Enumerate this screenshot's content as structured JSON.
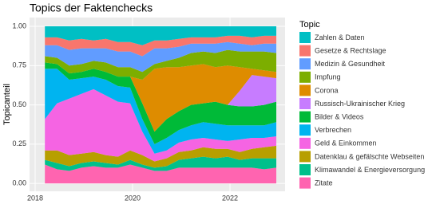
{
  "chart_data": {
    "type": "stacked-area",
    "title": "Topics der Faktenchecks",
    "y_label": "Topicanteil",
    "legend_title": "Topic",
    "x": [
      2018.2,
      2018.45,
      2018.7,
      2018.95,
      2019.2,
      2019.45,
      2019.7,
      2019.95,
      2020.2,
      2020.45,
      2020.7,
      2020.95,
      2021.2,
      2021.45,
      2021.7,
      2021.95,
      2022.2,
      2022.45,
      2022.7,
      2022.95
    ],
    "xlim": [
      2017.885,
      2023.13
    ],
    "xticks": [
      2018,
      2020,
      2022
    ],
    "ylim": [
      -0.05,
      1.056
    ],
    "yticks": [
      {
        "value": 0,
        "label": "0.00"
      },
      {
        "value": 0.25,
        "label": "0.25"
      },
      {
        "value": 0.5,
        "label": "0.50"
      },
      {
        "value": 0.75,
        "label": "0.75"
      },
      {
        "value": 1,
        "label": "1.00"
      }
    ],
    "grid": true,
    "series": [
      {
        "name": "Zahlen & Daten",
        "color": "#00BFC4",
        "values": [
          0.07,
          0.07,
          0.09,
          0.08,
          0.09,
          0.08,
          0.1,
          0.1,
          0.12,
          0.09,
          0.09,
          0.08,
          0.07,
          0.07,
          0.07,
          0.06,
          0.06,
          0.07,
          0.06,
          0.06
        ]
      },
      {
        "name": "Gesetze & Rechtslage",
        "color": "#F8766D",
        "values": [
          0.05,
          0.05,
          0.06,
          0.06,
          0.05,
          0.06,
          0.06,
          0.06,
          0.07,
          0.05,
          0.05,
          0.05,
          0.04,
          0.04,
          0.04,
          0.04,
          0.05,
          0.05,
          0.05,
          0.05
        ]
      },
      {
        "name": "Medizin & Gesundheit",
        "color": "#619CFF",
        "values": [
          0.07,
          0.08,
          0.1,
          0.1,
          0.08,
          0.09,
          0.1,
          0.1,
          0.1,
          0.1,
          0.08,
          0.07,
          0.06,
          0.05,
          0.06,
          0.05,
          0.05,
          0.04,
          0.05,
          0.06
        ]
      },
      {
        "name": "Impfung",
        "color": "#7CAE00",
        "values": [
          0.04,
          0.04,
          0.05,
          0.05,
          0.05,
          0.06,
          0.06,
          0.06,
          0.05,
          0.03,
          0.04,
          0.06,
          0.08,
          0.08,
          0.09,
          0.1,
          0.1,
          0.11,
          0.12,
          0.12
        ]
      },
      {
        "name": "Corona",
        "color": "#DE8C00",
        "values": [
          0,
          0,
          0,
          0,
          0,
          0,
          0,
          0,
          0.15,
          0.4,
          0.33,
          0.28,
          0.25,
          0.25,
          0.22,
          0.25,
          0.15,
          0.04,
          0.04,
          0.04
        ]
      },
      {
        "name": "Russisch-Ukrainischer Krieg",
        "color": "#C77CFF",
        "values": [
          0,
          0,
          0,
          0,
          0,
          0,
          0,
          0,
          0,
          0,
          0,
          0,
          0,
          0,
          0,
          0,
          0.1,
          0.2,
          0.18,
          0.15
        ]
      },
      {
        "name": "Bilder & Videos",
        "color": "#00BA38",
        "values": [
          0.04,
          0.03,
          0.04,
          0.04,
          0.05,
          0.05,
          0.06,
          0.07,
          0.1,
          0.08,
          0.12,
          0.12,
          0.13,
          0.12,
          0.14,
          0.13,
          0.12,
          0.12,
          0.13,
          0.13
        ]
      },
      {
        "name": "Verbrechen",
        "color": "#00B4F0",
        "values": [
          0.32,
          0.22,
          0.12,
          0.1,
          0.08,
          0.1,
          0.1,
          0.1,
          0.08,
          0.06,
          0.08,
          0.08,
          0.09,
          0.1,
          0.1,
          0.1,
          0.09,
          0.08,
          0.08,
          0.09
        ]
      },
      {
        "name": "Geld & Einkommen",
        "color": "#F564E3",
        "values": [
          0.2,
          0.3,
          0.36,
          0.38,
          0.4,
          0.38,
          0.35,
          0.3,
          0.15,
          0.05,
          0.05,
          0.06,
          0.07,
          0.06,
          0.06,
          0.05,
          0.08,
          0.07,
          0.06,
          0.06
        ]
      },
      {
        "name": "Datenklau & gefälschte Webseiten",
        "color": "#B79F00",
        "values": [
          0.06,
          0.08,
          0.07,
          0.06,
          0.06,
          0.05,
          0.05,
          0.06,
          0.06,
          0.04,
          0.05,
          0.05,
          0.05,
          0.06,
          0.06,
          0.05,
          0.05,
          0.06,
          0.07,
          0.08
        ]
      },
      {
        "name": "Klimawandel & Energieversorgung",
        "color": "#00C08B",
        "values": [
          0.03,
          0.04,
          0.03,
          0.03,
          0.03,
          0.03,
          0.02,
          0.03,
          0.02,
          0.02,
          0.03,
          0.05,
          0.06,
          0.07,
          0.06,
          0.07,
          0.05,
          0.06,
          0.07,
          0.06
        ]
      },
      {
        "name": "Zitate",
        "color": "#FF64B0",
        "values": [
          0.12,
          0.09,
          0.08,
          0.1,
          0.11,
          0.1,
          0.1,
          0.12,
          0.1,
          0.08,
          0.08,
          0.1,
          0.1,
          0.1,
          0.1,
          0.1,
          0.1,
          0.1,
          0.09,
          0.1
        ]
      }
    ]
  }
}
